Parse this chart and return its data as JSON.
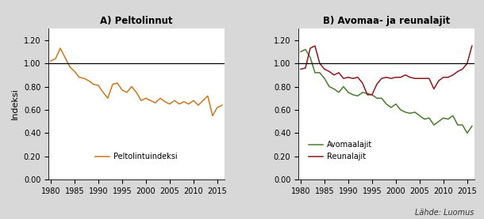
{
  "title_a": "A) Peltolinnut",
  "title_b": "B) Avomaa- ja reunalajit",
  "ylabel": "Indeksi",
  "source": "Lähde: Luomus",
  "background_color": "#d8d8d8",
  "plot_bg": "#ffffff",
  "ylim": [
    0.0,
    1.3
  ],
  "yticks": [
    0.0,
    0.2,
    0.4,
    0.6,
    0.8,
    1.0,
    1.2
  ],
  "xlim": [
    1979.5,
    2016.5
  ],
  "xticks": [
    1980,
    1985,
    1990,
    1995,
    2000,
    2005,
    2010,
    2015
  ],
  "peltolinnut_color": "#c87820",
  "avomaalajit_color": "#4a7c2f",
  "reunalajit_color": "#8b1a1a",
  "years": [
    1980,
    1981,
    1982,
    1983,
    1984,
    1985,
    1986,
    1987,
    1988,
    1989,
    1990,
    1991,
    1992,
    1993,
    1994,
    1995,
    1996,
    1997,
    1998,
    1999,
    2000,
    2001,
    2002,
    2003,
    2004,
    2005,
    2006,
    2007,
    2008,
    2009,
    2010,
    2011,
    2012,
    2013,
    2014,
    2015,
    2016
  ],
  "peltolinnut": [
    1.02,
    1.04,
    1.13,
    1.05,
    0.97,
    0.93,
    0.88,
    0.87,
    0.85,
    0.82,
    0.81,
    0.75,
    0.7,
    0.82,
    0.83,
    0.77,
    0.75,
    0.8,
    0.75,
    0.68,
    0.7,
    0.68,
    0.66,
    0.7,
    0.67,
    0.65,
    0.68,
    0.65,
    0.67,
    0.65,
    0.68,
    0.64,
    0.68,
    0.72,
    0.55,
    0.62,
    0.64
  ],
  "avomaalajit": [
    1.1,
    1.12,
    1.05,
    0.92,
    0.92,
    0.87,
    0.8,
    0.78,
    0.75,
    0.8,
    0.75,
    0.73,
    0.72,
    0.75,
    0.74,
    0.73,
    0.7,
    0.7,
    0.65,
    0.62,
    0.65,
    0.6,
    0.58,
    0.57,
    0.58,
    0.55,
    0.52,
    0.53,
    0.47,
    0.5,
    0.53,
    0.52,
    0.55,
    0.47,
    0.47,
    0.4,
    0.46
  ],
  "reunalajit": [
    0.95,
    0.96,
    1.13,
    1.15,
    1.0,
    0.95,
    0.93,
    0.9,
    0.92,
    0.87,
    0.88,
    0.87,
    0.88,
    0.83,
    0.73,
    0.73,
    0.82,
    0.87,
    0.88,
    0.87,
    0.88,
    0.88,
    0.9,
    0.88,
    0.87,
    0.87,
    0.87,
    0.87,
    0.78,
    0.85,
    0.88,
    0.88,
    0.9,
    0.93,
    0.95,
    1.0,
    1.15
  ]
}
